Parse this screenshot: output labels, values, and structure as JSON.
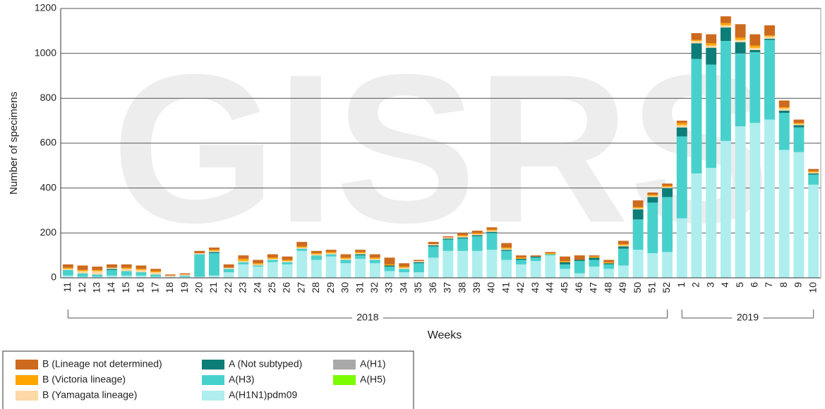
{
  "chart_data": {
    "type": "stacked-bar",
    "watermark": "GISRS",
    "y_label": "Number of specimens",
    "x_label": "Weeks",
    "groups": [
      "2018",
      "2019"
    ],
    "categories": [
      "11",
      "12",
      "13",
      "14",
      "15",
      "16",
      "17",
      "18",
      "19",
      "20",
      "21",
      "22",
      "23",
      "24",
      "25",
      "26",
      "27",
      "28",
      "29",
      "30",
      "31",
      "32",
      "33",
      "34",
      "35",
      "36",
      "37",
      "38",
      "39",
      "40",
      "41",
      "42",
      "43",
      "44",
      "45",
      "46",
      "47",
      "48",
      "49",
      "50",
      "51",
      "52",
      "1",
      "2",
      "3",
      "4",
      "5",
      "6",
      "7",
      "8",
      "9",
      "10"
    ],
    "ylim": [
      0,
      1200
    ],
    "yticks": [
      0,
      200,
      400,
      600,
      800,
      1000,
      1200
    ],
    "grid": true,
    "series": [
      {
        "name": "B (Lineage not determined)",
        "color": "#cd6a1e",
        "values": [
          15,
          20,
          15,
          15,
          15,
          15,
          10,
          5,
          5,
          10,
          10,
          15,
          15,
          15,
          15,
          15,
          20,
          10,
          10,
          15,
          10,
          15,
          30,
          15,
          5,
          10,
          5,
          10,
          10,
          10,
          20,
          10,
          5,
          5,
          20,
          20,
          5,
          10,
          15,
          30,
          10,
          10,
          10,
          30,
          40,
          30,
          60,
          50,
          45,
          30,
          15,
          10
        ]
      },
      {
        "name": "B (Victoria lineage)",
        "color": "#ffa500",
        "values": [
          5,
          5,
          5,
          0,
          5,
          5,
          5,
          0,
          0,
          0,
          5,
          0,
          10,
          5,
          5,
          5,
          5,
          5,
          5,
          5,
          5,
          5,
          5,
          5,
          0,
          0,
          0,
          5,
          5,
          5,
          5,
          5,
          0,
          5,
          5,
          0,
          5,
          5,
          5,
          5,
          5,
          5,
          10,
          5,
          10,
          10,
          10,
          10,
          5,
          5,
          5,
          5
        ]
      },
      {
        "name": "B (Yamagata lineage)",
        "color": "#fdd9a6",
        "values": [
          5,
          10,
          15,
          5,
          10,
          10,
          10,
          5,
          5,
          5,
          5,
          5,
          5,
          5,
          5,
          5,
          5,
          5,
          5,
          5,
          5,
          5,
          0,
          5,
          5,
          5,
          5,
          5,
          5,
          5,
          5,
          0,
          0,
          0,
          0,
          0,
          0,
          0,
          5,
          5,
          5,
          5,
          10,
          10,
          10,
          10,
          10,
          10,
          10,
          10,
          5,
          5
        ]
      },
      {
        "name": "A (Not subtyped)",
        "color": "#0d7d78",
        "values": [
          0,
          0,
          0,
          5,
          0,
          0,
          0,
          0,
          0,
          0,
          5,
          0,
          0,
          0,
          0,
          0,
          0,
          0,
          0,
          0,
          5,
          0,
          5,
          0,
          5,
          5,
          5,
          5,
          5,
          5,
          5,
          5,
          5,
          0,
          10,
          5,
          10,
          5,
          10,
          45,
          25,
          40,
          40,
          70,
          75,
          60,
          50,
          10,
          5,
          10,
          10,
          5
        ]
      },
      {
        "name": "A(H3)",
        "color": "#48d1cc",
        "values": [
          25,
          15,
          10,
          25,
          20,
          15,
          10,
          0,
          5,
          100,
          100,
          15,
          10,
          5,
          10,
          10,
          10,
          20,
          10,
          15,
          15,
          15,
          20,
          15,
          40,
          50,
          50,
          55,
          65,
          75,
          40,
          20,
          15,
          5,
          20,
          55,
          30,
          20,
          75,
          135,
          225,
          245,
          365,
          510,
          460,
          445,
          325,
          315,
          355,
          165,
          110,
          45
        ]
      },
      {
        "name": "A(H1N1)pdm09",
        "color": "#aeeeee",
        "values": [
          10,
          5,
          5,
          10,
          10,
          10,
          5,
          5,
          5,
          5,
          10,
          25,
          60,
          50,
          70,
          60,
          120,
          80,
          95,
          65,
          85,
          65,
          30,
          25,
          25,
          90,
          120,
          120,
          120,
          125,
          80,
          60,
          75,
          100,
          40,
          20,
          50,
          40,
          55,
          125,
          110,
          115,
          265,
          465,
          490,
          610,
          675,
          690,
          705,
          570,
          560,
          415
        ]
      },
      {
        "name": "A(H1)",
        "color": "#a9a9a9",
        "values": [
          0,
          0,
          0,
          0,
          0,
          0,
          0,
          0,
          0,
          0,
          0,
          0,
          0,
          0,
          0,
          0,
          0,
          0,
          0,
          0,
          0,
          0,
          0,
          0,
          0,
          0,
          0,
          0,
          0,
          0,
          0,
          0,
          0,
          0,
          0,
          0,
          0,
          0,
          0,
          0,
          0,
          0,
          0,
          0,
          0,
          0,
          0,
          0,
          0,
          0,
          0,
          0
        ]
      },
      {
        "name": "A(H5)",
        "color": "#7cfc00",
        "values": [
          0,
          0,
          0,
          0,
          0,
          0,
          0,
          0,
          0,
          0,
          0,
          0,
          0,
          0,
          0,
          0,
          0,
          0,
          0,
          0,
          0,
          0,
          0,
          0,
          0,
          0,
          0,
          0,
          0,
          0,
          0,
          0,
          0,
          0,
          0,
          0,
          0,
          0,
          0,
          0,
          0,
          0,
          0,
          0,
          0,
          0,
          0,
          0,
          0,
          0,
          0,
          0
        ]
      }
    ]
  }
}
